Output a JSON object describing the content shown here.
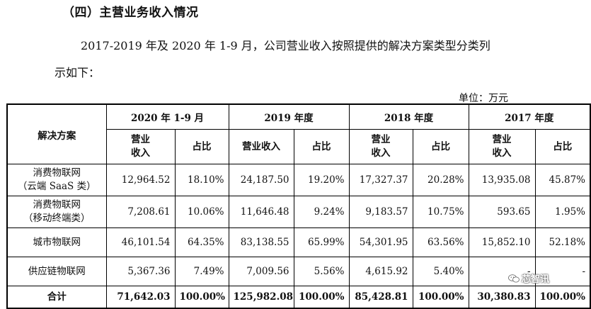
{
  "heading": "（四）主营业务收入情况",
  "paragraph": {
    "line1": "2017-2019 年及 2020 年 1-9 月，公司营业收入按照提供的解决方案类型分类列",
    "line2": "示如下："
  },
  "unit": "单位：万元",
  "table": {
    "first_col_header": "解决方案",
    "periods": [
      "2020 年 1-9 月",
      "2019 年度",
      "2018 年度",
      "2017 年度"
    ],
    "revenue_header_a": "营业",
    "revenue_header_b": "收入",
    "revenue_header_full": "营业收入",
    "share_header": "占比",
    "rows": [
      {
        "name_a": "消费物联网",
        "name_b": "（云端 SaaS 类）",
        "cells": [
          "12,964.52",
          "18.10%",
          "24,187.50",
          "19.20%",
          "17,327.37",
          "20.28%",
          "13,935.08",
          "45.87%"
        ]
      },
      {
        "name_a": "消费物联网",
        "name_b": "（移动终端类）",
        "cells": [
          "7,208.61",
          "10.06%",
          "11,646.48",
          "9.24%",
          "9,183.57",
          "10.75%",
          "593.65",
          "1.95%"
        ]
      },
      {
        "name_a": "城市物联网",
        "cells": [
          "46,101.54",
          "64.35%",
          "83,138.55",
          "65.99%",
          "54,301.95",
          "63.56%",
          "15,852.10",
          "52.18%"
        ]
      },
      {
        "name_a": "供应链物联网",
        "cells": [
          "5,367.36",
          "7.49%",
          "7,009.56",
          "5.56%",
          "4,615.92",
          "5.40%",
          "-",
          "-"
        ]
      }
    ],
    "total": {
      "label": "合计",
      "cells": [
        "71,642.03",
        "100.00%",
        "125,982.08",
        "100.00%",
        "85,428.81",
        "100.00%",
        "30,380.83",
        "100.00%"
      ]
    }
  },
  "watermark": {
    "text": "芯智讯",
    "icon": "wechat-icon"
  }
}
